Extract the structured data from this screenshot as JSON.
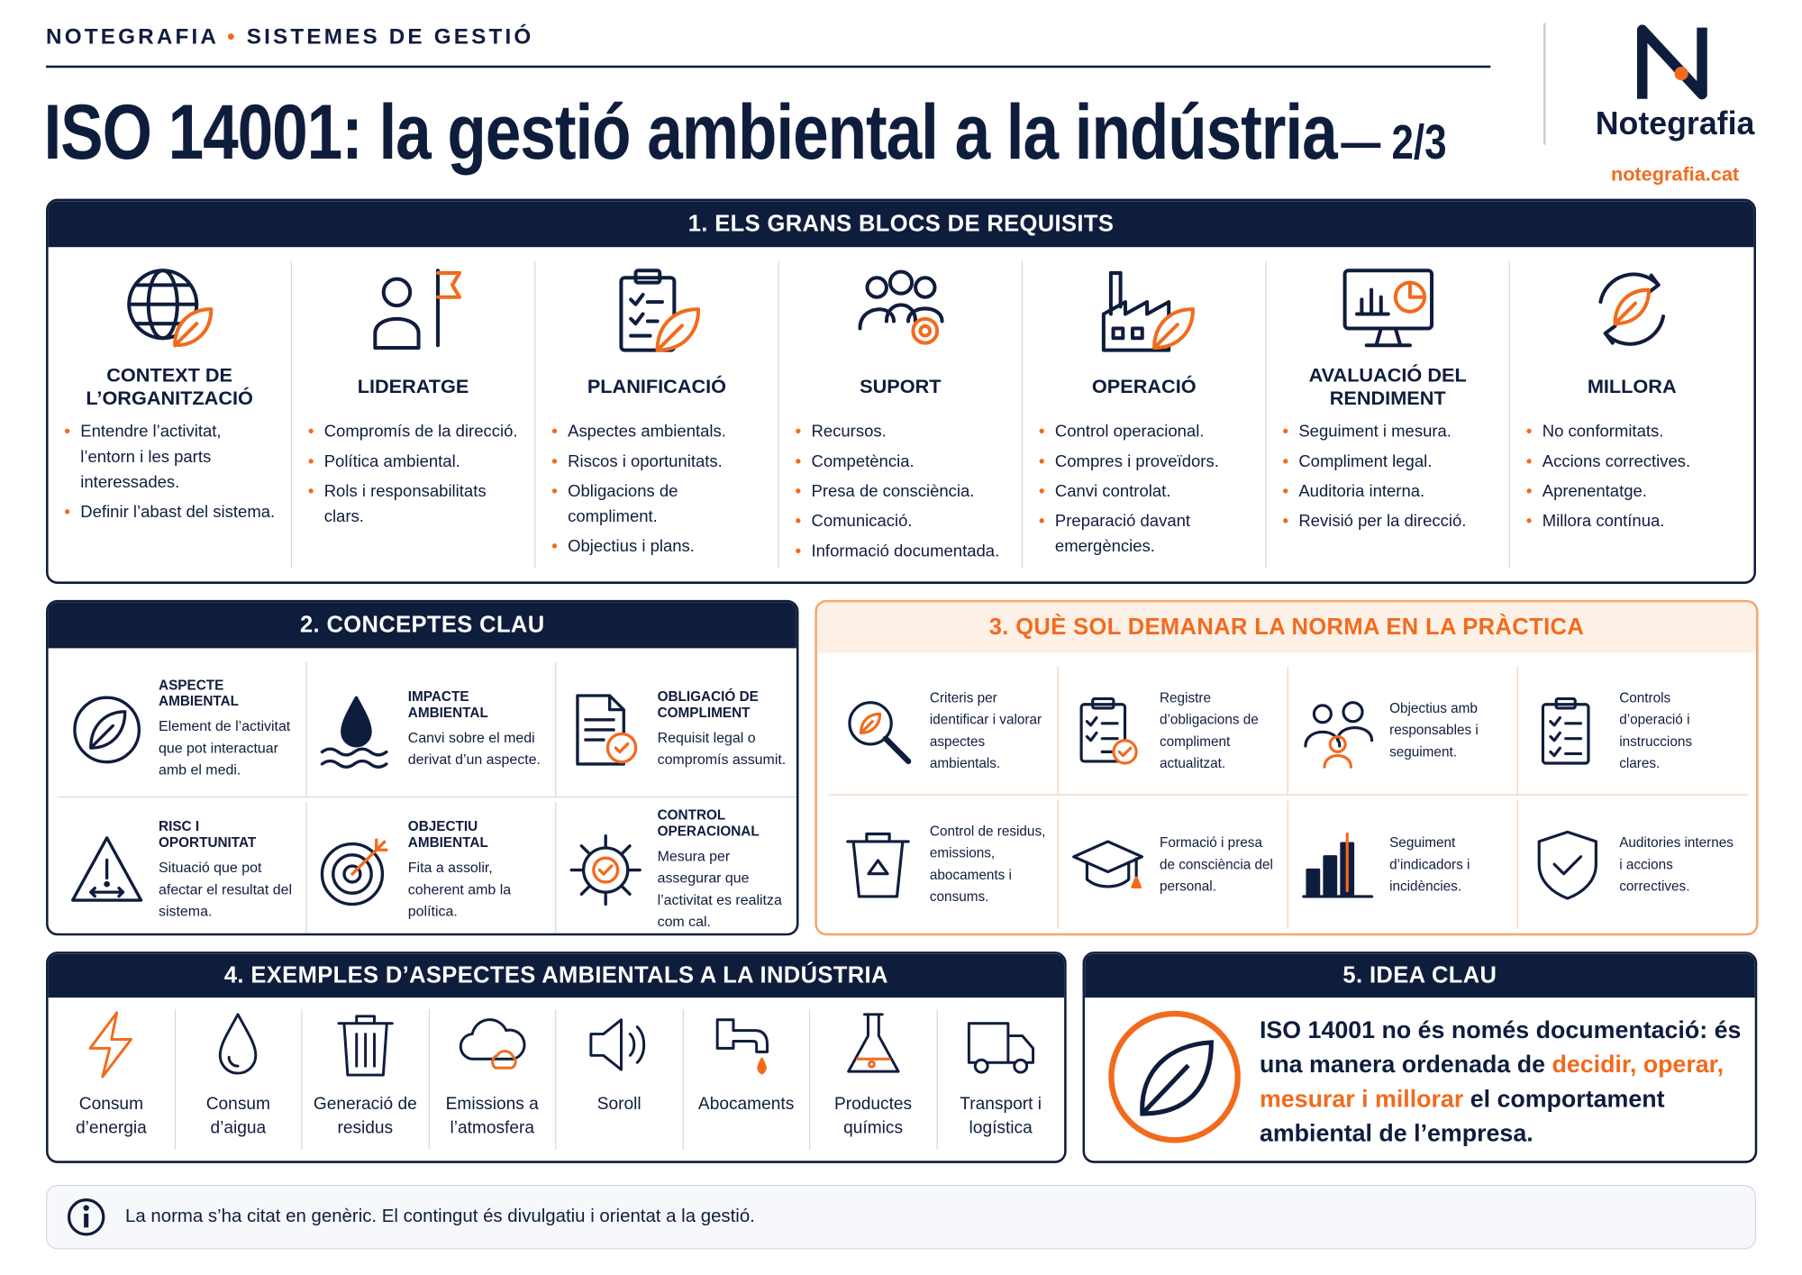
{
  "header": {
    "brand": "NOTEGRAFIA",
    "section": "SISTEMES DE GESTIÓ",
    "title": "ISO 14001: la gestió ambiental a la indústria",
    "part": "— 2/3",
    "logo_name": "Notegrafia",
    "logo_url": "notegrafia.cat"
  },
  "section1": {
    "title": "1. ELS GRANS BLOCS DE REQUISITS",
    "blocks": [
      {
        "title": "CONTEXT DE L’ORGANITZACIÓ",
        "items": [
          "Entendre l’activitat, l’entorn i les parts interessades.",
          "Definir l’abast del sistema."
        ]
      },
      {
        "title": "LIDERATGE",
        "items": [
          "Compromís de la direcció.",
          "Política ambiental.",
          "Rols i responsabilitats clars."
        ]
      },
      {
        "title": "PLANIFICACIÓ",
        "items": [
          "Aspectes ambientals.",
          "Riscos i oportunitats.",
          "Obligacions de compliment.",
          "Objectius i plans."
        ]
      },
      {
        "title": "SUPORT",
        "items": [
          "Recursos.",
          "Competència.",
          "Presa de consciència.",
          "Comunicació.",
          "Informació documentada."
        ]
      },
      {
        "title": "OPERACIÓ",
        "items": [
          "Control operacional.",
          "Compres i proveïdors.",
          "Canvi controlat.",
          "Preparació davant emergències."
        ]
      },
      {
        "title": "AVALUACIÓ DEL RENDIMENT",
        "items": [
          "Seguiment i mesura.",
          "Compliment legal.",
          "Auditoria interna.",
          "Revisió per la direcció."
        ]
      },
      {
        "title": "MILLORA",
        "items": [
          "No conformitats.",
          "Accions correctives.",
          "Aprenentatge.",
          "Millora contínua."
        ]
      }
    ]
  },
  "section2": {
    "title": "2. CONCEPTES CLAU",
    "concepts": [
      {
        "title": "ASPECTE AMBIENTAL",
        "text": "Element de l’activitat que pot interactuar amb el medi."
      },
      {
        "title": "IMPACTE AMBIENTAL",
        "text": "Canvi sobre el medi derivat d’un aspecte."
      },
      {
        "title": "OBLIGACIÓ DE COMPLIMENT",
        "text": "Requisit legal o compromís assumit."
      },
      {
        "title": "RISC I OPORTUNITAT",
        "text": "Situació que pot afectar el resultat del sistema."
      },
      {
        "title": "OBJECTIU AMBIENTAL",
        "text": "Fita a assolir, coherent amb la política."
      },
      {
        "title": "CONTROL OPERACIONAL",
        "text": "Mesura per assegurar que l’activitat es realitza com cal."
      }
    ]
  },
  "section3": {
    "title": "3. QUÈ SOL DEMANAR LA NORMA EN LA PRÀCTICA",
    "items": [
      "Criteris per identificar i valorar aspectes ambientals.",
      "Registre d’obligacions de compliment actualitzat.",
      "Objectius amb responsables i seguiment.",
      "Controls d’operació i instruccions clares.",
      "Control de residus, emissions, abocaments i consums.",
      "Formació i presa de consciència del personal.",
      "Seguiment d’indicadors i incidències.",
      "Auditories internes i accions correctives."
    ]
  },
  "section4": {
    "title": "4. EXEMPLES D’ASPECTES AMBIENTALS A LA INDÚSTRIA",
    "examples": [
      "Consum d’energia",
      "Consum d’aigua",
      "Generació de residus",
      "Emissions a l’atmosfera",
      "Soroll",
      "Abocaments",
      "Productes químics",
      "Transport i logística"
    ]
  },
  "section5": {
    "title": "5. IDEA CLAU",
    "text_start": "ISO 14001 no és només documentació: és una manera ordenada de ",
    "text_highlight": "decidir, operar, mesurar i millorar",
    "text_end": " el comportament ambiental de l’empresa."
  },
  "footer": {
    "note": "La norma s’ha citat en genèric. El contingut és divulgatiu i orientat a la gestió."
  }
}
